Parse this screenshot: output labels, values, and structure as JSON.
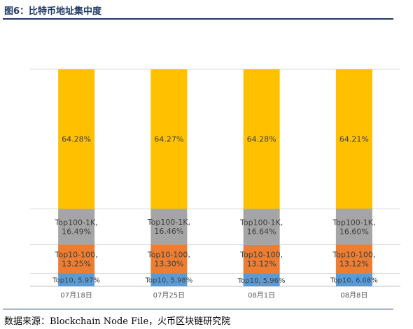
{
  "figure_title": "图6：比特币地址集中度",
  "source": {
    "prefix": "数据来源：",
    "name": "Blockchain Node File",
    "suffix": "，火币区块链研究院"
  },
  "chart_data": {
    "type": "bar",
    "stacked": true,
    "categories": [
      "07月18日",
      "07月25日",
      "08月1日",
      "08月8日"
    ],
    "series": [
      {
        "values": [
          5.97,
          5.98,
          5.96,
          6.08
        ],
        "color": "#5b9bd5",
        "labels": [
          "Top10, 5.97%",
          "Top10, 5.98%",
          "Top10, 5.96%",
          "Top10, 6.08%"
        ]
      },
      {
        "values": [
          13.25,
          13.3,
          13.12,
          13.12
        ],
        "color": "#ed7d31",
        "labels": [
          "Top10-100,\n13.25%",
          "Top10-100,\n13.30%",
          "Top10-100,\n13.12%",
          "Top10-100,\n13.12%"
        ]
      },
      {
        "values": [
          16.49,
          16.46,
          16.64,
          16.6
        ],
        "color": "#a5a5a5",
        "labels": [
          "Top100-1K,\n16.49%",
          "Top100-1K,\n16.46%",
          "Top100-1K,\n16.64%",
          "Top100-1K,\n16.60%"
        ]
      },
      {
        "values": [
          64.28,
          64.27,
          64.28,
          64.21
        ],
        "color": "#ffc000",
        "labels": [
          "64.28%",
          "64.27%",
          "64.28%",
          "64.21%"
        ]
      }
    ],
    "ylim": [
      0,
      100
    ],
    "grid": true,
    "legend": "none"
  }
}
